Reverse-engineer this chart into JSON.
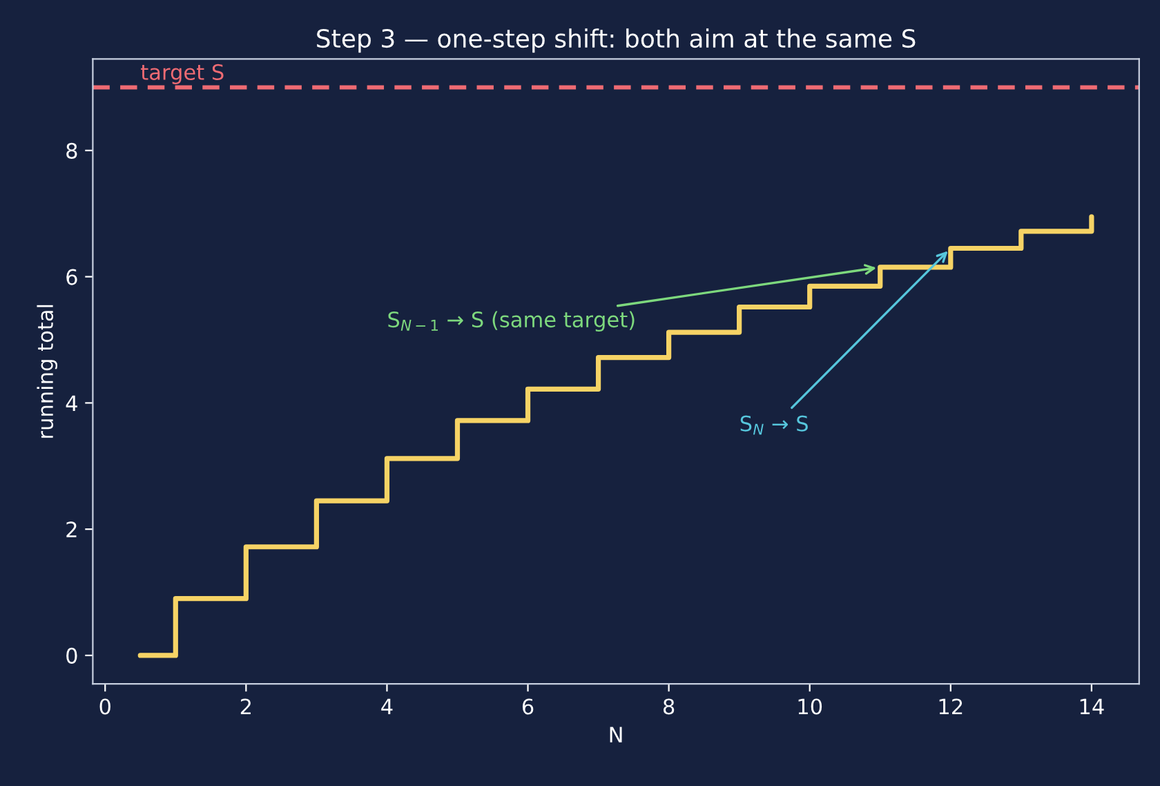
{
  "chart_data": {
    "type": "step",
    "title": "Step 3 — one-step shift: both aim at the same S",
    "xlabel": "N",
    "ylabel": "running total",
    "x": [
      0.5,
      1,
      2,
      3,
      4,
      5,
      6,
      7,
      8,
      9,
      10,
      11,
      12,
      13,
      14
    ],
    "series": [
      {
        "color": "#f6d365",
        "values": [
          0,
          0.9,
          1.72,
          2.45,
          3.12,
          3.72,
          4.22,
          4.72,
          5.12,
          5.52,
          5.85,
          6.15,
          6.45,
          6.72,
          6.95
        ]
      }
    ],
    "xlim": [
      -0.175,
      14.675
    ],
    "ylim": [
      -0.45,
      9.45
    ],
    "xticks": [
      0,
      2,
      4,
      6,
      8,
      10,
      12,
      14
    ],
    "yticks": [
      0,
      2,
      4,
      6,
      8
    ],
    "ref_lines": [
      {
        "axis": "y",
        "value": 9,
        "label": "target S",
        "color": "#ef6b73",
        "line_style": "dashed"
      }
    ],
    "annotations": [
      {
        "text": "S$_{N−1}$ → S (same target)",
        "x": 11,
        "y": 6.15
      },
      {
        "text": "S$_{N}$ → S",
        "x": 12,
        "y": 6.45
      }
    ],
    "grid": false
  }
}
